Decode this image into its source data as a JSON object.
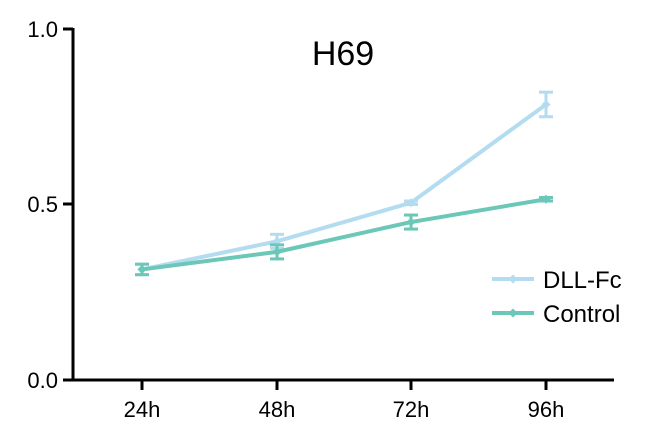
{
  "chart_data": {
    "type": "line",
    "title": "H69",
    "xlabel": "",
    "ylabel": "",
    "categories": [
      "24h",
      "48h",
      "72h",
      "96h"
    ],
    "ylim": [
      0,
      1.0
    ],
    "yticks": [
      0.0,
      0.5,
      1.0
    ],
    "ytick_labels": [
      "0.0",
      "0.5",
      "1.0"
    ],
    "grid": false,
    "legend_position": "right",
    "series": [
      {
        "name": "DLL-Fc",
        "color": "#b3dcf0",
        "values": [
          0.315,
          0.395,
          0.505,
          0.785
        ],
        "errors": [
          0.015,
          0.02,
          0.005,
          0.035
        ]
      },
      {
        "name": "Control",
        "color": "#6bc7b8",
        "values": [
          0.315,
          0.365,
          0.45,
          0.515
        ],
        "errors": [
          0.015,
          0.02,
          0.02,
          0.005
        ]
      }
    ]
  }
}
